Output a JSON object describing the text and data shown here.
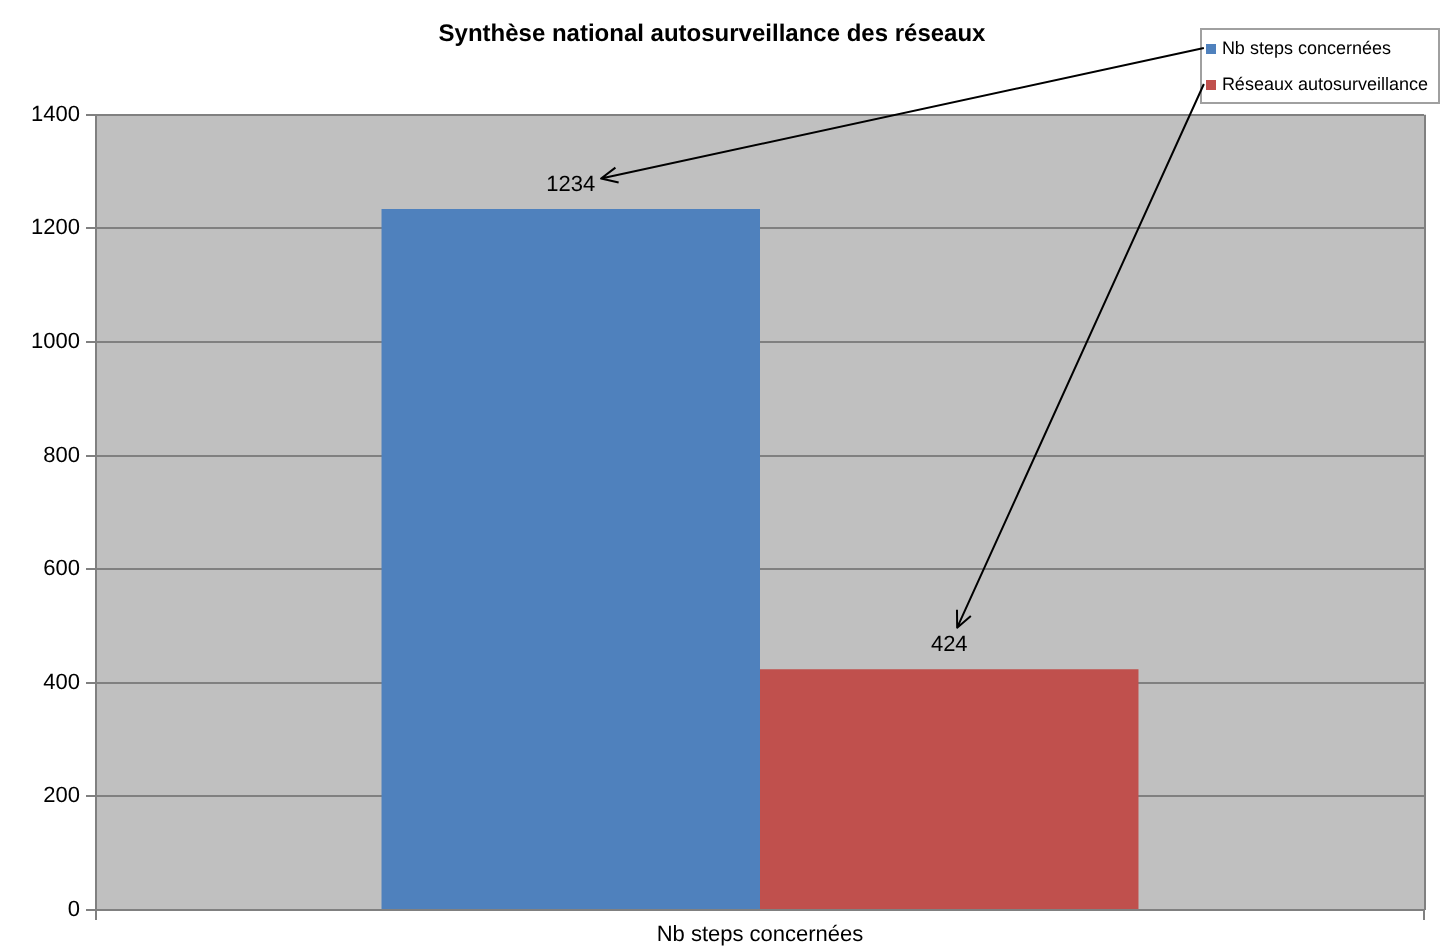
{
  "chart_data": {
    "type": "bar",
    "title": "Synthèse national autosurveillance des réseaux",
    "categories": [
      "Nb steps concernées"
    ],
    "series": [
      {
        "name": "Nb steps concernées",
        "color": "#4f81bd",
        "values": [
          1234
        ]
      },
      {
        "name": "Réseaux autosurveillance",
        "color": "#c0504d",
        "values": [
          424
        ]
      }
    ],
    "ylim": [
      0,
      1400
    ],
    "yticks": [
      0,
      200,
      400,
      600,
      800,
      1000,
      1200,
      1400
    ],
    "grid": "y",
    "legend": "top right",
    "data_labels": true
  }
}
